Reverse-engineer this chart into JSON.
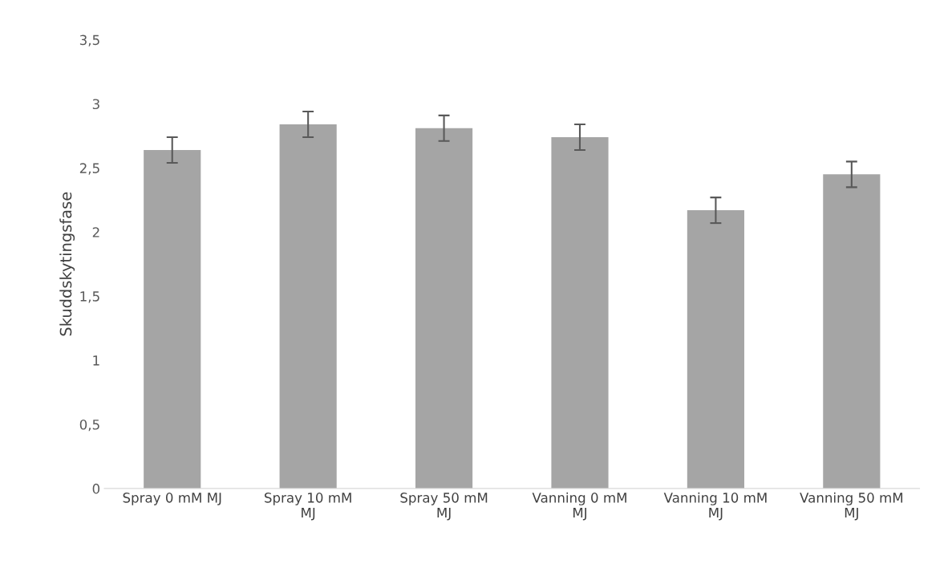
{
  "chart_data": {
    "type": "bar",
    "ylabel": "Skuddskytingsfase",
    "categories": [
      "Spray 0 mM MJ",
      "Spray 10 mM MJ",
      "Spray 50 mM MJ",
      "Vanning 0 mM MJ",
      "Vanning 10 mM MJ",
      "Vanning 50 mM MJ"
    ],
    "values": [
      2.64,
      2.84,
      2.81,
      2.74,
      2.17,
      2.45
    ],
    "errors": [
      0.1,
      0.1,
      0.1,
      0.1,
      0.1,
      0.1
    ],
    "color": "#a5a5a5",
    "ylim": [
      0,
      3.5
    ],
    "yticks": [
      0,
      {
        "value": 0.5,
        "label": "0,5"
      },
      1,
      {
        "value": 1.5,
        "label": "1,5"
      },
      2,
      {
        "value": 2.5,
        "label": "2,5"
      },
      3,
      {
        "value": 3.5,
        "label": "3,5"
      }
    ],
    "grid": false,
    "legend": false
  }
}
